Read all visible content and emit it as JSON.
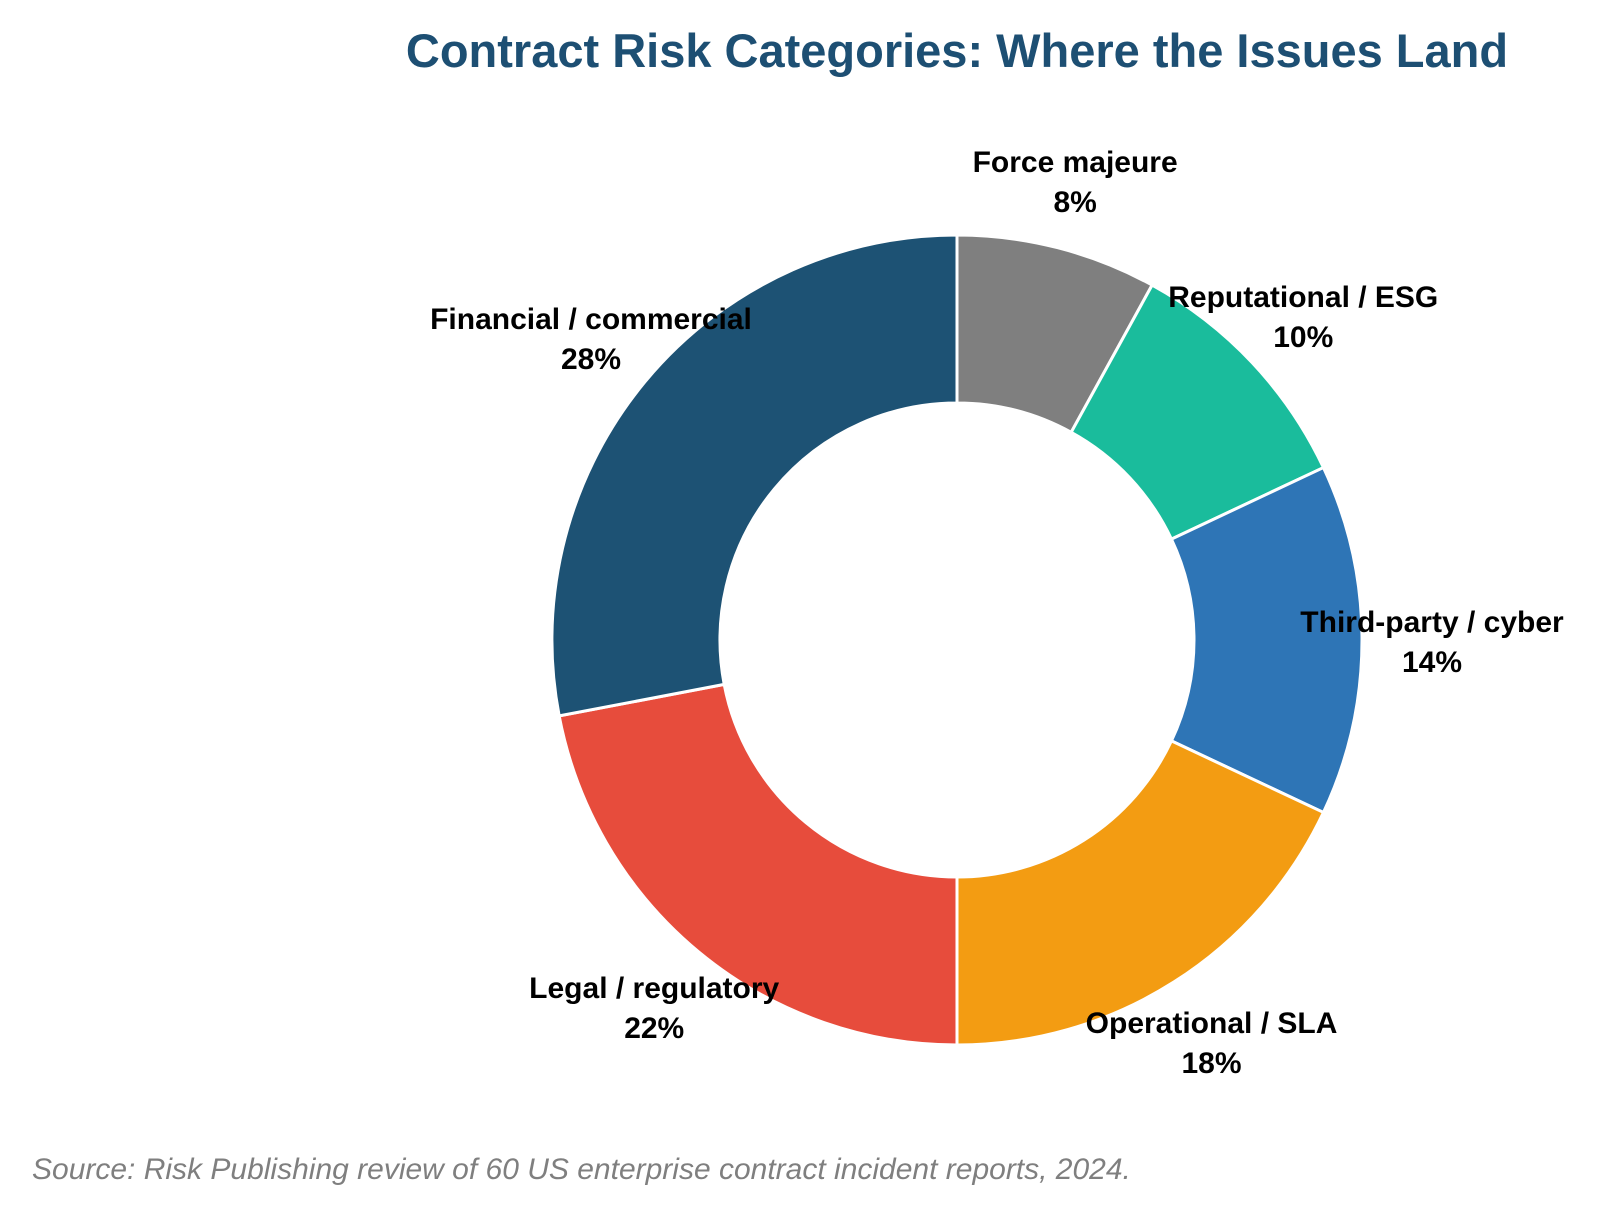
{
  "chart_data": {
    "type": "pie",
    "donut": true,
    "title": "Contract Risk Categories: Where the Issues Land",
    "unit": "%",
    "slices": [
      {
        "label": "Force majeure",
        "value": 8,
        "value_label": "8%",
        "color": "#7f7f7f"
      },
      {
        "label": "Reputational / ESG",
        "value": 10,
        "value_label": "10%",
        "color": "#1abc9c"
      },
      {
        "label": "Third-party / cyber",
        "value": 14,
        "value_label": "14%",
        "color": "#2e75b6"
      },
      {
        "label": "Operational / SLA",
        "value": 18,
        "value_label": "18%",
        "color": "#f39c12"
      },
      {
        "label": "Legal / regulatory",
        "value": 22,
        "value_label": "22%",
        "color": "#e74c3c"
      },
      {
        "label": "Financial / commercial",
        "value": 28,
        "value_label": "28%",
        "color": "#1d5274"
      }
    ],
    "start": "12 o'clock",
    "direction": "clockwise",
    "legend": "none",
    "source": "Source: Risk Publishing review of 60 US enterprise contract incident reports, 2024."
  }
}
